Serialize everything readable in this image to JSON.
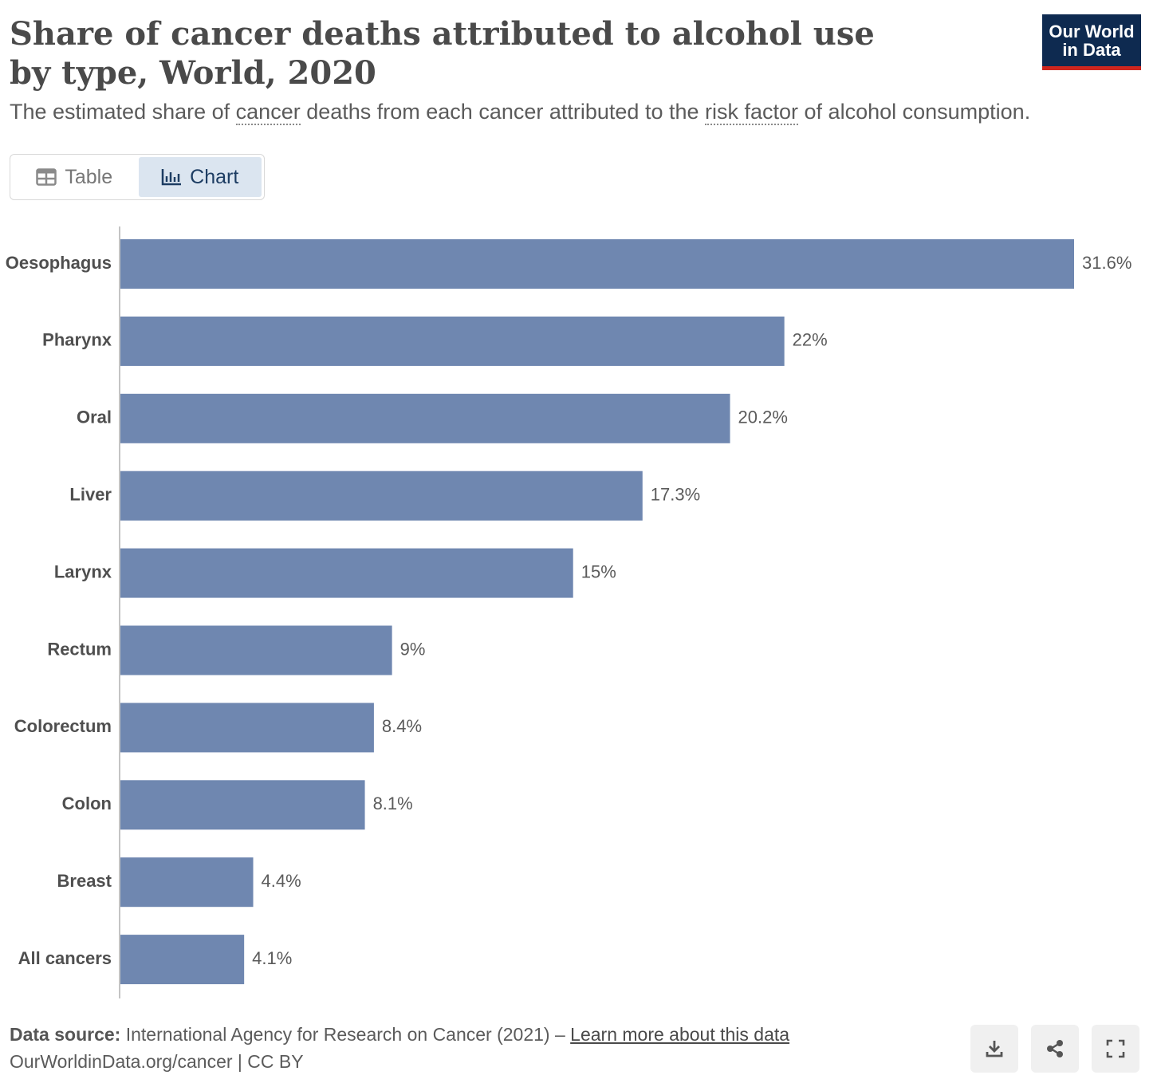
{
  "header": {
    "title": "Share of cancer deaths attributed to alcohol use by type, World, 2020",
    "subtitle": {
      "before": "The estimated share of ",
      "term1": "cancer",
      "middle": " deaths from each cancer attributed to the ",
      "term2": "risk factor",
      "after": " of alcohol consumption."
    },
    "logo_line1": "Our World",
    "logo_line2": "in Data",
    "logo_bg": "#0e2a50",
    "logo_accent": "#ce261e"
  },
  "tabs": [
    {
      "label": "Table",
      "icon": "table-icon",
      "active": false
    },
    {
      "label": "Chart",
      "icon": "bar-chart-icon",
      "active": true
    }
  ],
  "chart_data": {
    "type": "bar",
    "orientation": "horizontal",
    "categories": [
      "Oesophagus",
      "Pharynx",
      "Oral",
      "Liver",
      "Larynx",
      "Rectum",
      "Colorectum",
      "Colon",
      "Breast",
      "All cancers"
    ],
    "values": [
      31.6,
      22,
      20.2,
      17.3,
      15,
      9,
      8.4,
      8.1,
      4.4,
      4.1
    ],
    "value_labels": [
      "31.6%",
      "22%",
      "20.2%",
      "17.3%",
      "15%",
      "9%",
      "8.4%",
      "8.1%",
      "4.4%",
      "4.1%"
    ],
    "unit": "%",
    "xlim": [
      0,
      31.6
    ],
    "bar_color": "#6f87b0",
    "grid": false,
    "legend": "none"
  },
  "footer": {
    "source_label": "Data source:",
    "source_text": " International Agency for Research on Cancer (2021) – ",
    "learn_more": "Learn more about this data",
    "credit": "OurWorldinData.org/cancer | CC BY"
  },
  "controls": [
    {
      "name": "download-button",
      "icon": "download-icon"
    },
    {
      "name": "share-button",
      "icon": "share-icon"
    },
    {
      "name": "fullscreen-button",
      "icon": "fullscreen-icon"
    }
  ]
}
